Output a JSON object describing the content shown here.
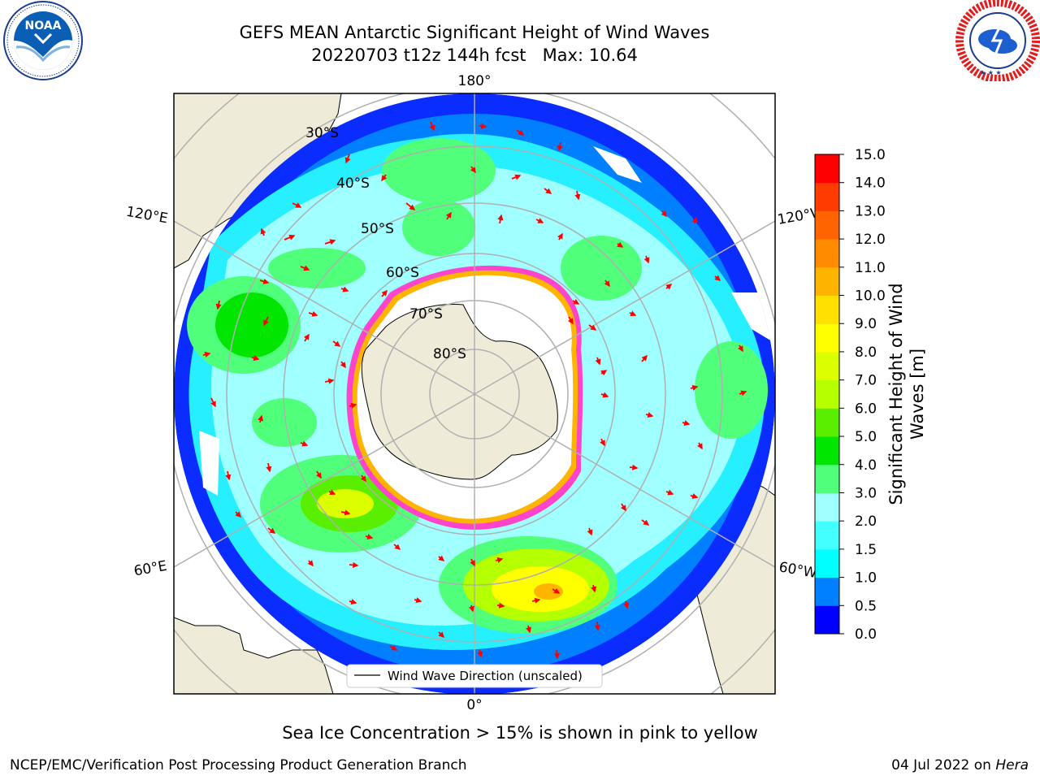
{
  "title": {
    "line1": "GEFS MEAN Antarctic Significant Height of Wind Waves",
    "line2": "20220703 t12z 144h fcst   Max: 10.64"
  },
  "logos": {
    "left": {
      "name": "NOAA",
      "text": "NOAA",
      "ring_text": "NATIONAL OCEANIC AND ATMOSPHERIC ADMINISTRATION · U.S. DEPARTMENT OF COMMERCE"
    },
    "right": {
      "name": "National Weather Service",
      "ring_text": "NATIONAL WEATHER SERVICE"
    }
  },
  "map": {
    "longitude_labels": {
      "top": "180°",
      "bottom": "0°",
      "left_upper": "120°E",
      "left_lower": "60°E",
      "right_upper": "120°W",
      "right_lower": "60°W"
    },
    "latitude_labels": [
      "30°S",
      "40°S",
      "50°S",
      "60°S",
      "70°S",
      "80°S"
    ],
    "legend": "Wind Wave Direction (unscaled)",
    "colors": {
      "land": "#eeecd9",
      "coast": "#000000",
      "ice": "#ff44cc",
      "arrow": "#ff0000",
      "grid": "#b0b0b0"
    }
  },
  "colorbar": {
    "label_line1": "Significant Height of Wind",
    "label_line2": "Waves [m]",
    "ticks": [
      "0.0",
      "0.5",
      "1.0",
      "1.5",
      "2.0",
      "3.0",
      "4.0",
      "5.0",
      "6.0",
      "7.0",
      "8.0",
      "9.0",
      "10.0",
      "11.0",
      "12.0",
      "13.0",
      "14.0",
      "15.0"
    ],
    "colors": [
      "#0000ff",
      "#0080ff",
      "#00ffff",
      "#44ffff",
      "#a0ffff",
      "#50ff7a",
      "#00e600",
      "#5aee00",
      "#b4ff00",
      "#dcff00",
      "#ffff00",
      "#ffe000",
      "#ffb400",
      "#ff8c00",
      "#ff6400",
      "#ff3c00",
      "#ff0000"
    ]
  },
  "chart_data": {
    "type": "heatmap",
    "title": "GEFS MEAN Antarctic Significant Height of Wind Waves",
    "subtitle": "20220703 t12z 144h fcst   Max: 10.64",
    "projection": "south polar stereographic",
    "variable_label": "Significant Height of Wind Waves [m]",
    "max": 10.64,
    "color_levels": [
      0.0,
      0.5,
      1.0,
      1.5,
      2.0,
      3.0,
      4.0,
      5.0,
      6.0,
      7.0,
      8.0,
      9.0,
      10.0,
      11.0,
      12.0,
      13.0,
      14.0,
      15.0
    ],
    "color_range": [
      0.0,
      15.0
    ],
    "overlay": "Wind Wave Direction (unscaled)"
  },
  "note": "Sea Ice Concentration > 15% is shown in pink to yellow",
  "footer": {
    "left": "NCEP/EMC/Verification Post Processing Product Generation Branch",
    "date": "04 Jul 2022 on ",
    "host": "Hera"
  }
}
